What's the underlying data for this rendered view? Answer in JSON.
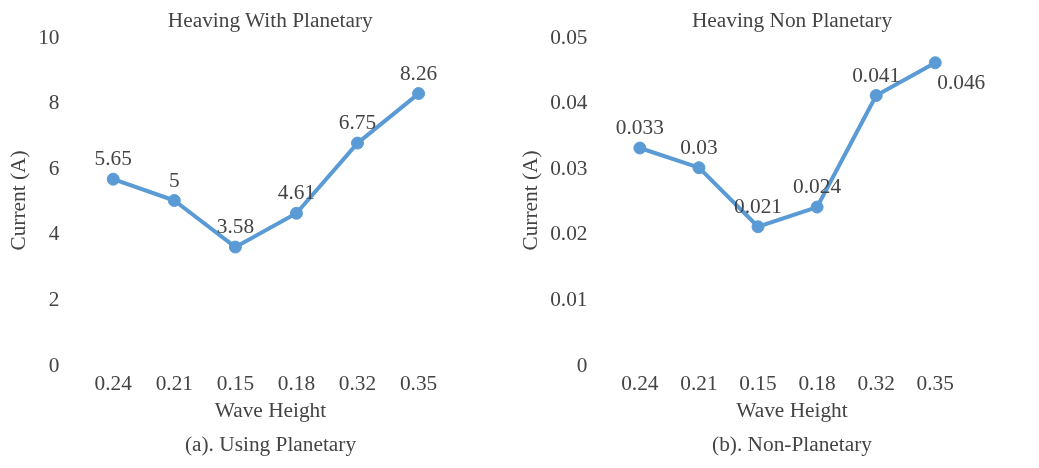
{
  "chart_data": [
    {
      "type": "line",
      "title": "Heaving With Planetary",
      "xlabel": "Wave Height",
      "ylabel": "Current (A)",
      "categories": [
        "0.24",
        "0.21",
        "0.15",
        "0.18",
        "0.32",
        "0.35"
      ],
      "series": [
        {
          "color": "#5b9bd5",
          "values": [
            5.65,
            5,
            3.58,
            4.61,
            6.75,
            8.26
          ]
        }
      ],
      "ylim": [
        0,
        10
      ],
      "yticks": [
        0,
        2,
        4,
        6,
        8,
        10
      ],
      "grid": false,
      "marker": "circle",
      "line_style": "solid",
      "data_labels": true,
      "annotations": [
        "(a). Using Planetary"
      ]
    },
    {
      "type": "line",
      "title": "Heaving Non Planetary",
      "xlabel": "Wave Height",
      "ylabel": "Current (A)",
      "categories": [
        "0.24",
        "0.21",
        "0.15",
        "0.18",
        "0.32",
        "0.35"
      ],
      "series": [
        {
          "color": "#5b9bd5",
          "values": [
            0.033,
            0.03,
            0.021,
            0.024,
            0.041,
            0.046
          ]
        }
      ],
      "ylim": [
        0,
        0.05
      ],
      "yticks": [
        0,
        0.01,
        0.02,
        0.03,
        0.04,
        0.05
      ],
      "grid": false,
      "marker": "circle",
      "line_style": "solid",
      "data_labels": true,
      "annotations": [
        "(b). Non-Planetary"
      ]
    }
  ]
}
